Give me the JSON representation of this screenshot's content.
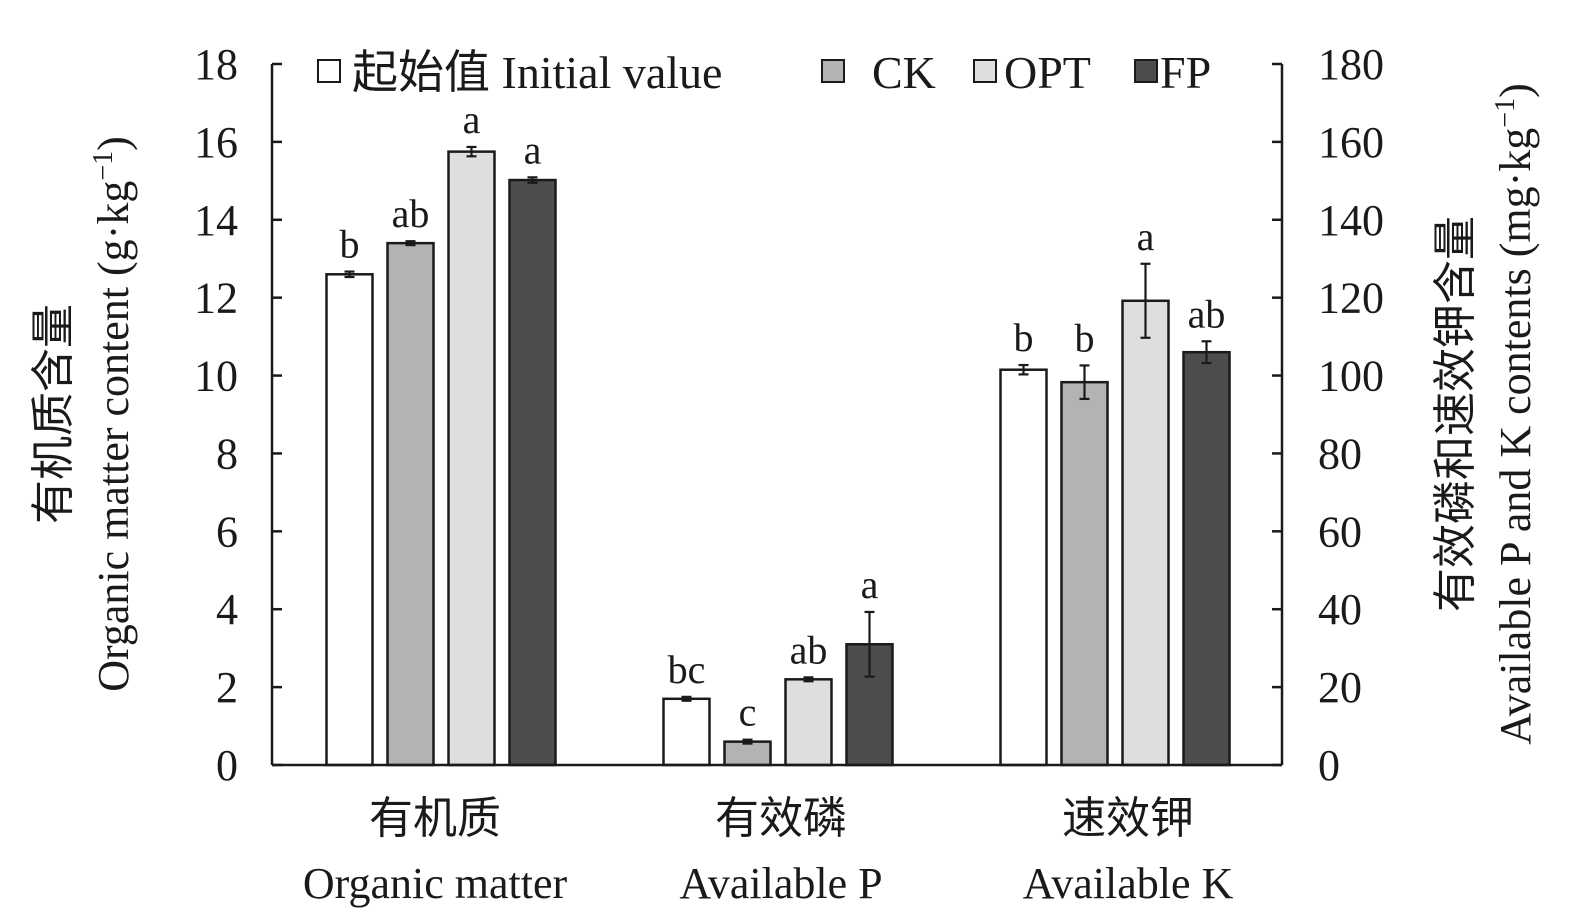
{
  "chart_data": {
    "type": "bar",
    "categories": [
      {
        "zh": "有机质",
        "en": "Organic matter",
        "axis": "left"
      },
      {
        "zh": "有效磷",
        "en": "Available P",
        "axis": "right"
      },
      {
        "zh": "速效钾",
        "en": "Available K",
        "axis": "right"
      }
    ],
    "series": [
      {
        "name": "起始值 Initial value",
        "color": "#ffffff",
        "values": [
          12.6,
          17,
          101.5
        ],
        "errors": [
          0.07,
          0.5,
          1.2
        ],
        "labels": [
          "b",
          "bc",
          "b"
        ]
      },
      {
        "name": "CK",
        "color": "#b3b3b3",
        "values": [
          13.4,
          6,
          98.3
        ],
        "errors": [
          0.05,
          0.5,
          4.3
        ],
        "labels": [
          "ab",
          "c",
          "b"
        ]
      },
      {
        "name": "OPT",
        "color": "#dedede",
        "values": [
          15.75,
          22,
          119.2
        ],
        "errors": [
          0.12,
          0.5,
          9.5
        ],
        "labels": [
          "a",
          "ab",
          "a"
        ]
      },
      {
        "name": "FP",
        "color": "#4d4d4d",
        "values": [
          15.02,
          31,
          106
        ],
        "errors": [
          0.07,
          8.3,
          2.8
        ],
        "labels": [
          "a",
          "a",
          "ab"
        ]
      }
    ],
    "left_axis": {
      "label_zh": "有机质含量",
      "label_en": "Organic matter content (g·kg",
      "label_en_sup": "−1",
      "label_en_end": ")",
      "ylim": [
        0,
        18
      ],
      "ticks": [
        "0",
        "2",
        "4",
        "6",
        "8",
        "10",
        "12",
        "14",
        "16",
        "18"
      ]
    },
    "right_axis": {
      "label_zh": "有效磷和速效钾含量",
      "label_en": "Available P and K contents (mg·kg",
      "label_en_sup": "−1",
      "label_en_end": ")",
      "ylim": [
        0,
        180
      ],
      "ticks": [
        "0",
        "20",
        "40",
        "60",
        "80",
        "100",
        "120",
        "140",
        "160",
        "180"
      ]
    },
    "grid": false,
    "legend_position": "top"
  }
}
